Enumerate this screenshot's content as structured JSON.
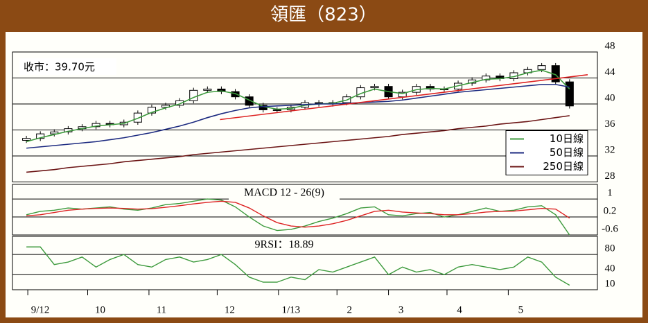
{
  "title": "領匯（823）",
  "chart_data": [
    {
      "type": "candlestick",
      "label": "收市：39.70元",
      "xlim": [
        -1,
        41
      ],
      "ylim": [
        28,
        48
      ],
      "yticks": [
        28,
        32,
        36,
        40,
        44,
        48
      ],
      "grid": true,
      "legend": "lower right",
      "open": [
        34.4,
        34.7,
        35.4,
        35.7,
        36.2,
        36.5,
        37.0,
        36.8,
        37.2,
        38.6,
        39.5,
        39.8,
        40.5,
        42.1,
        42.3,
        41.9,
        41.1,
        39.8,
        39.1,
        39.1,
        39.5,
        40.2,
        40.0,
        40.2,
        41.1,
        42.5,
        42.7,
        41.1,
        41.8,
        42.7,
        42.3,
        42.3,
        43.2,
        43.7,
        44.3,
        43.9,
        44.8,
        45.3,
        45.9,
        43.4
      ],
      "high": [
        35.1,
        35.8,
        36.1,
        36.6,
        36.9,
        37.4,
        37.4,
        37.6,
        39.0,
        39.9,
        40.2,
        40.9,
        42.5,
        42.7,
        42.7,
        42.3,
        41.5,
        40.2,
        39.5,
        39.9,
        40.6,
        40.6,
        40.6,
        41.5,
        42.9,
        43.1,
        43.1,
        42.2,
        43.1,
        43.1,
        42.7,
        43.6,
        44.1,
        44.7,
        44.7,
        45.2,
        45.7,
        46.3,
        46.3,
        43.8
      ],
      "low": [
        34.0,
        34.3,
        35.0,
        35.3,
        35.8,
        36.1,
        36.4,
        36.4,
        36.8,
        38.2,
        39.1,
        39.4,
        40.1,
        41.7,
        41.5,
        40.7,
        39.4,
        38.7,
        38.7,
        38.7,
        39.1,
        39.6,
        39.6,
        39.8,
        40.7,
        42.1,
        40.7,
        40.7,
        41.4,
        41.9,
        41.9,
        41.9,
        42.8,
        43.3,
        43.5,
        43.5,
        44.4,
        44.9,
        43.0,
        39.3
      ],
      "close": [
        34.7,
        35.4,
        35.7,
        36.2,
        36.5,
        37.0,
        36.8,
        37.2,
        38.6,
        39.5,
        39.8,
        40.5,
        42.1,
        42.3,
        41.9,
        41.1,
        39.8,
        39.1,
        39.1,
        39.5,
        40.2,
        40.0,
        40.2,
        41.1,
        42.5,
        42.7,
        41.1,
        41.8,
        42.7,
        42.3,
        42.3,
        43.2,
        43.7,
        44.3,
        43.9,
        44.8,
        45.3,
        45.9,
        43.4,
        39.7
      ],
      "series": [
        {
          "name": "10日線",
          "color": "#3c9a3c",
          "values": [
            34.2,
            34.8,
            35.3,
            35.8,
            36.2,
            36.6,
            36.8,
            37.0,
            37.8,
            38.7,
            39.4,
            40.0,
            41.0,
            41.8,
            42.0,
            41.6,
            40.6,
            39.6,
            39.2,
            39.3,
            39.8,
            40.0,
            40.1,
            40.6,
            41.6,
            42.3,
            41.9,
            41.6,
            42.2,
            42.4,
            42.3,
            42.8,
            43.3,
            43.8,
            43.9,
            44.2,
            44.8,
            45.2,
            44.5,
            42.3
          ]
        },
        {
          "name": "50日線",
          "color": "#1c2a80",
          "values": [
            33.2,
            33.4,
            33.6,
            33.8,
            34.0,
            34.2,
            34.5,
            34.8,
            35.2,
            35.6,
            36.1,
            36.6,
            37.2,
            37.9,
            38.5,
            39.0,
            39.4,
            39.6,
            39.7,
            39.8,
            39.9,
            40.0,
            40.0,
            40.1,
            40.2,
            40.3,
            40.4,
            40.6,
            40.9,
            41.2,
            41.5,
            41.8,
            42.0,
            42.2,
            42.4,
            42.6,
            42.8,
            43.0,
            43.0,
            42.6
          ]
        },
        {
          "name": "250日線",
          "color": "#6b1414",
          "values": [
            29.5,
            29.7,
            29.9,
            30.2,
            30.4,
            30.6,
            30.8,
            31.1,
            31.3,
            31.5,
            31.7,
            31.9,
            32.2,
            32.4,
            32.6,
            32.8,
            33.0,
            33.2,
            33.4,
            33.6,
            33.8,
            34.0,
            34.2,
            34.4,
            34.6,
            34.8,
            35.0,
            35.3,
            35.5,
            35.7,
            35.9,
            36.2,
            36.4,
            36.6,
            36.9,
            37.1,
            37.3,
            37.6,
            37.9,
            38.2
          ]
        }
      ],
      "trend": {
        "color": "#dd2222",
        "x": [
          13.9,
          40.3
        ],
        "values": [
          37.6,
          44.5
        ]
      }
    },
    {
      "type": "line",
      "title": "MACD 12 - 26(9)",
      "xlim": [
        -1,
        41
      ],
      "ylim": [
        -0.6,
        1.65
      ],
      "yticks": [
        -0.6,
        0.2,
        1.0
      ],
      "grid": true,
      "series": [
        {
          "color": "#3c9a3c",
          "values": [
            0.3,
            0.45,
            0.5,
            0.6,
            0.55,
            0.6,
            0.65,
            0.55,
            0.5,
            0.6,
            0.75,
            0.8,
            0.9,
            1.0,
            0.95,
            0.65,
            0.2,
            -0.2,
            -0.4,
            -0.35,
            -0.2,
            0.0,
            0.15,
            0.35,
            0.6,
            0.65,
            0.3,
            0.25,
            0.35,
            0.4,
            0.2,
            0.3,
            0.45,
            0.6,
            0.45,
            0.5,
            0.65,
            0.7,
            0.3,
            -0.6
          ]
        },
        {
          "color": "#dd2222",
          "values": [
            0.25,
            0.3,
            0.4,
            0.5,
            0.55,
            0.58,
            0.6,
            0.58,
            0.55,
            0.57,
            0.63,
            0.7,
            0.78,
            0.85,
            0.9,
            0.85,
            0.6,
            0.25,
            -0.05,
            -0.2,
            -0.25,
            -0.2,
            -0.1,
            0.05,
            0.25,
            0.45,
            0.5,
            0.42,
            0.38,
            0.35,
            0.3,
            0.3,
            0.35,
            0.42,
            0.45,
            0.46,
            0.52,
            0.58,
            0.55,
            0.15
          ]
        }
      ]
    },
    {
      "type": "line",
      "title": "9RSI：18.89",
      "xlim": [
        -1,
        41
      ],
      "ylim": [
        10,
        116
      ],
      "yticks": [
        10,
        40,
        80
      ],
      "grid": true,
      "xticks": [
        {
          "value": 0.1,
          "label": "9/12"
        },
        {
          "value": 4.4,
          "label": "10"
        },
        {
          "value": 8.8,
          "label": "11"
        },
        {
          "value": 13.7,
          "label": "12"
        },
        {
          "value": 18.1,
          "label": "1/13"
        },
        {
          "value": 22.3,
          "label": "2"
        },
        {
          "value": 26.0,
          "label": "3"
        },
        {
          "value": 30.2,
          "label": "4"
        },
        {
          "value": 34.6,
          "label": "5"
        }
      ],
      "series": [
        {
          "color": "#3c9a3c",
          "values": [
            95,
            95,
            60,
            65,
            75,
            55,
            70,
            80,
            60,
            55,
            70,
            75,
            65,
            70,
            80,
            60,
            35,
            25,
            25,
            35,
            30,
            50,
            45,
            55,
            65,
            75,
            40,
            55,
            45,
            50,
            40,
            55,
            60,
            55,
            50,
            55,
            75,
            65,
            35,
            18.89
          ]
        }
      ]
    }
  ]
}
